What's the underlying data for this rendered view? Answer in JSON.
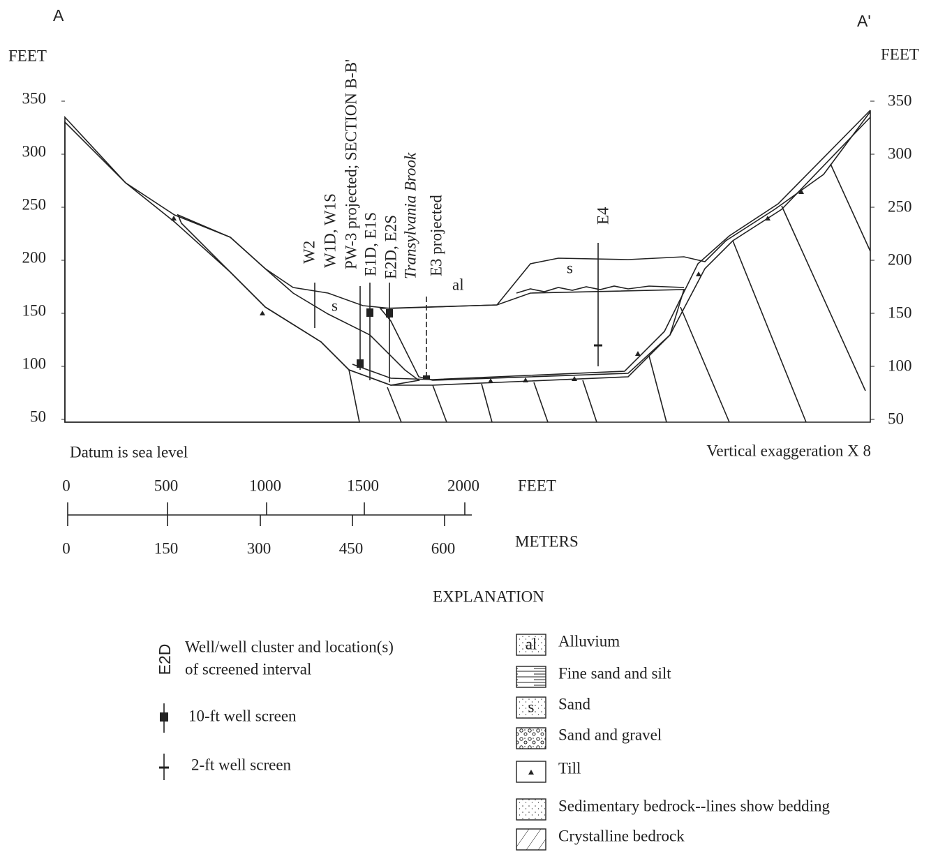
{
  "header": {
    "left_label": "A",
    "right_label": "A'"
  },
  "axes": {
    "left_unit": "FEET",
    "right_unit": "FEET",
    "left_ticks": [
      350,
      300,
      250,
      200,
      150,
      100,
      50
    ],
    "right_ticks": [
      350,
      300,
      250,
      200,
      150,
      100,
      50
    ]
  },
  "wells": [
    "W2",
    "W1D, W1S",
    "PW-3 projected;  SECTION B-B'",
    "E1D, E1S",
    "E2D, E2S",
    "Transylvania Brook",
    "E3 projected",
    "E4"
  ],
  "unit_labels": {
    "alluvium": "al",
    "left_sand": "s",
    "right_sand": "s"
  },
  "notes": {
    "datum": "Datum is sea level",
    "exaggeration": "Vertical exaggeration X 8"
  },
  "scale": {
    "feet_label": "FEET",
    "feet_ticks": [
      0,
      500,
      1000,
      1500,
      2000
    ],
    "meters_label": "METERS",
    "meter_ticks": [
      0,
      150,
      300,
      450,
      600
    ]
  },
  "explanation": {
    "title": "EXPLANATION",
    "well_symbol": "E2D",
    "well_text": [
      "Well/well cluster and location(s)",
      "of  screened interval"
    ],
    "screens": [
      "10-ft well screen",
      "2-ft well screen"
    ],
    "legend": [
      {
        "symbol": "al",
        "label": "Alluvium"
      },
      {
        "label": "Fine sand and silt"
      },
      {
        "symbol": "s",
        "label": "Sand"
      },
      {
        "label": "Sand and gravel"
      },
      {
        "label": "Till"
      },
      {
        "label": "Sedimentary bedrock--lines show bedding"
      },
      {
        "label": "Crystalline bedrock"
      }
    ]
  }
}
